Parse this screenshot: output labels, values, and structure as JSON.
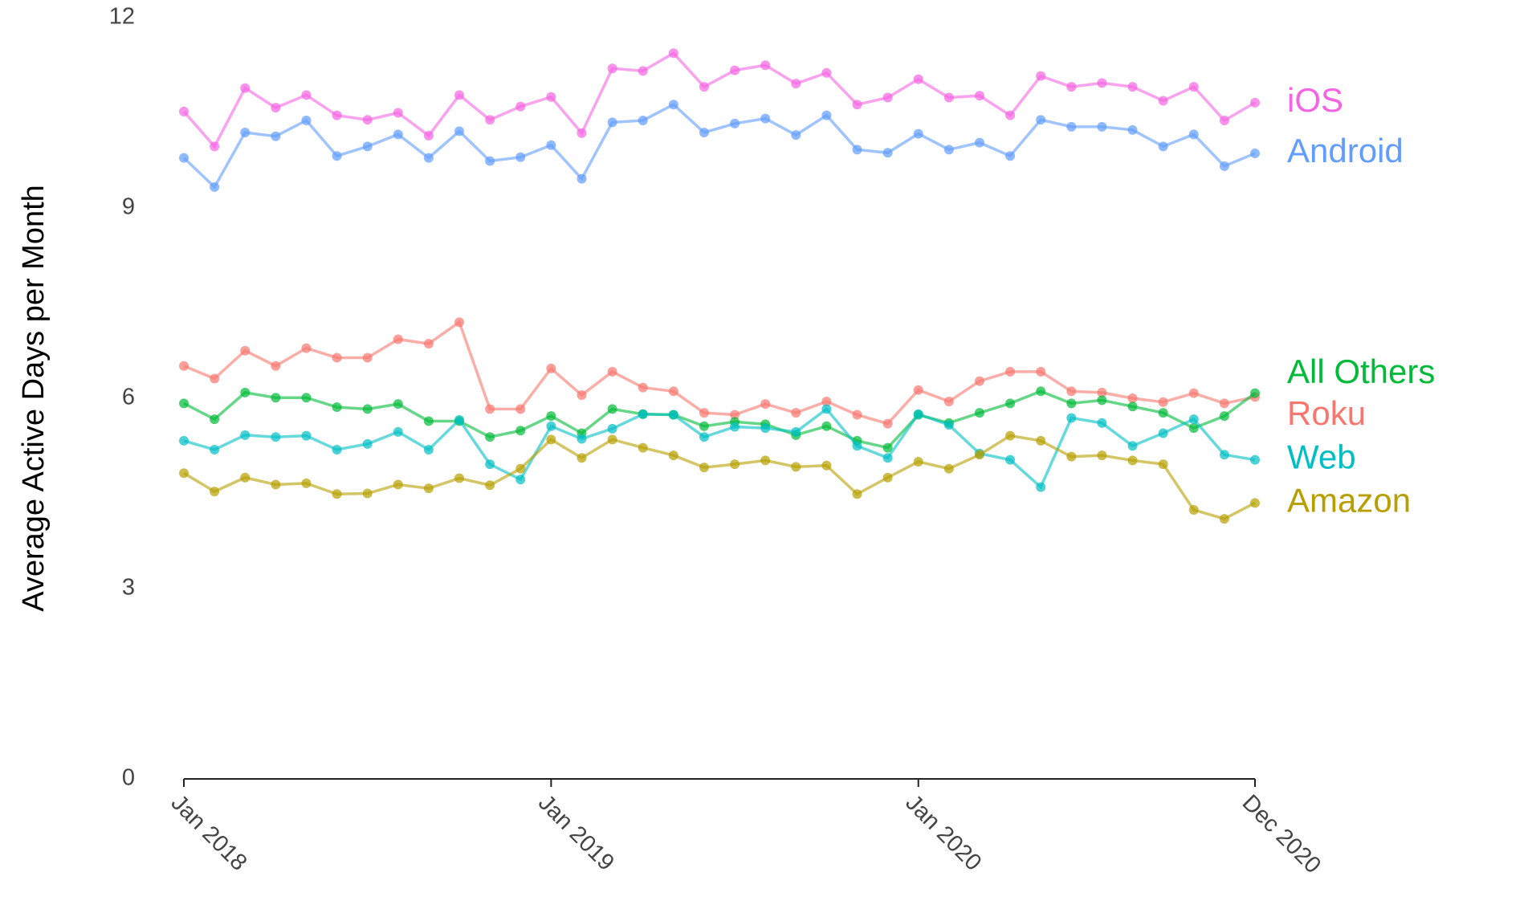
{
  "chart_data": {
    "type": "line",
    "y_label": "Average Active Days per Month",
    "x": [
      "2018-01",
      "2018-02",
      "2018-03",
      "2018-04",
      "2018-05",
      "2018-06",
      "2018-07",
      "2018-08",
      "2018-09",
      "2018-10",
      "2018-11",
      "2018-12",
      "2019-01",
      "2019-02",
      "2019-03",
      "2019-04",
      "2019-05",
      "2019-06",
      "2019-07",
      "2019-08",
      "2019-09",
      "2019-10",
      "2019-11",
      "2019-12",
      "2020-01",
      "2020-02",
      "2020-03",
      "2020-04",
      "2020-05",
      "2020-06",
      "2020-07",
      "2020-08",
      "2020-09",
      "2020-10",
      "2020-11",
      "2020-12"
    ],
    "xlim": [
      "2018-01",
      "2020-12"
    ],
    "xticks": [
      {
        "value": "2018-01",
        "label": "Jan 2018"
      },
      {
        "value": "2019-01",
        "label": "Jan 2019"
      },
      {
        "value": "2020-01",
        "label": "Jan 2020"
      },
      {
        "value": "2020-12",
        "label": "Dec 2020"
      }
    ],
    "ylim": [
      0,
      12
    ],
    "yticks": [
      0,
      3,
      6,
      9,
      12
    ],
    "grid": false,
    "series": [
      {
        "name": "iOS",
        "color": "#f564e3",
        "values": [
          10.52,
          9.97,
          10.89,
          10.58,
          10.78,
          10.46,
          10.39,
          10.5,
          10.14,
          10.78,
          10.39,
          10.6,
          10.75,
          10.18,
          11.2,
          11.16,
          11.44,
          10.91,
          11.17,
          11.25,
          10.96,
          11.13,
          10.63,
          10.74,
          11.03,
          10.74,
          10.77,
          10.46,
          11.08,
          10.91,
          10.97,
          10.91,
          10.69,
          10.91,
          10.38,
          10.66
        ]
      },
      {
        "name": "Android",
        "color": "#619cff",
        "values": [
          9.79,
          9.33,
          10.19,
          10.13,
          10.38,
          9.82,
          9.97,
          10.16,
          9.79,
          10.21,
          9.74,
          9.8,
          9.99,
          9.46,
          10.35,
          10.38,
          10.63,
          10.19,
          10.33,
          10.41,
          10.15,
          10.46,
          9.92,
          9.87,
          10.17,
          9.92,
          10.03,
          9.82,
          10.39,
          10.28,
          10.28,
          10.23,
          9.97,
          10.16,
          9.66,
          9.86
        ]
      },
      {
        "name": "Roku",
        "color": "#f8766d",
        "values": [
          6.51,
          6.31,
          6.75,
          6.51,
          6.79,
          6.64,
          6.64,
          6.93,
          6.86,
          7.2,
          5.83,
          5.83,
          6.47,
          6.05,
          6.42,
          6.17,
          6.11,
          5.77,
          5.74,
          5.91,
          5.77,
          5.95,
          5.74,
          5.6,
          6.13,
          5.95,
          6.27,
          6.42,
          6.42,
          6.11,
          6.09,
          6.0,
          5.94,
          6.08,
          5.92,
          6.02
        ]
      },
      {
        "name": "All Others",
        "color": "#00ba38",
        "values": [
          5.92,
          5.67,
          6.09,
          6.01,
          6.01,
          5.86,
          5.83,
          5.91,
          5.64,
          5.64,
          5.39,
          5.49,
          5.72,
          5.45,
          5.83,
          5.75,
          5.74,
          5.56,
          5.63,
          5.59,
          5.42,
          5.56,
          5.33,
          5.22,
          5.74,
          5.61,
          5.77,
          5.92,
          6.11,
          5.92,
          5.97,
          5.87,
          5.77,
          5.53,
          5.72,
          6.08
        ]
      },
      {
        "name": "Web",
        "color": "#00bfc4",
        "values": [
          5.33,
          5.19,
          5.42,
          5.39,
          5.41,
          5.19,
          5.28,
          5.47,
          5.19,
          5.66,
          4.96,
          4.72,
          5.56,
          5.36,
          5.52,
          5.75,
          5.74,
          5.39,
          5.55,
          5.53,
          5.47,
          5.83,
          5.25,
          5.06,
          5.75,
          5.58,
          5.13,
          5.03,
          4.6,
          5.69,
          5.61,
          5.25,
          5.45,
          5.67,
          5.11,
          5.03
        ]
      },
      {
        "name": "Amazon",
        "color": "#b79f00",
        "values": [
          4.82,
          4.53,
          4.75,
          4.64,
          4.66,
          4.49,
          4.5,
          4.64,
          4.58,
          4.74,
          4.63,
          4.89,
          5.35,
          5.06,
          5.35,
          5.22,
          5.1,
          4.91,
          4.96,
          5.02,
          4.92,
          4.94,
          4.49,
          4.75,
          5.0,
          4.89,
          5.11,
          5.41,
          5.33,
          5.08,
          5.1,
          5.02,
          4.96,
          4.24,
          4.1,
          4.35
        ]
      }
    ]
  }
}
